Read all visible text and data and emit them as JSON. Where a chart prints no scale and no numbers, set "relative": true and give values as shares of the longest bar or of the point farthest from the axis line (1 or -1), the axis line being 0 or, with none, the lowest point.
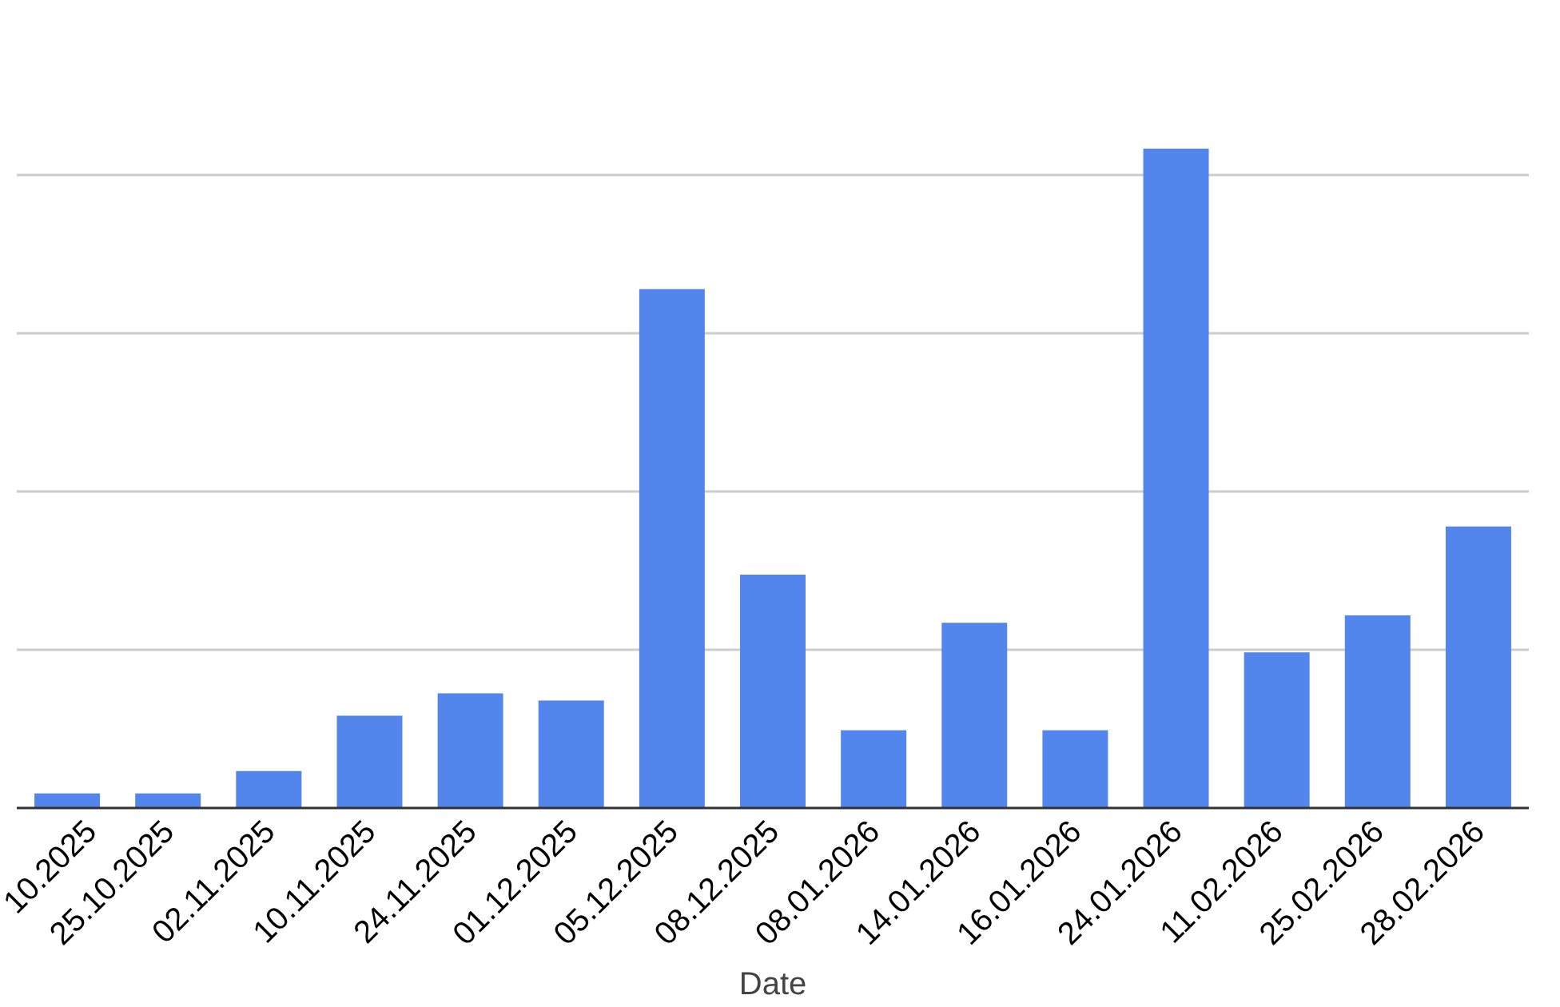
{
  "chart_data": {
    "type": "bar",
    "xlabel": "Date",
    "relative": true,
    "grid": "y",
    "categories": [
      "10.2025",
      "25.10.2025",
      "02.11.2025",
      "10.11.2025",
      "24.11.2025",
      "01.12.2025",
      "05.12.2025",
      "08.12.2025",
      "08.01.2026",
      "14.01.2026",
      "16.01.2026",
      "24.01.2026",
      "11.02.2026",
      "25.02.2026",
      "28.02.2026"
    ],
    "values": [
      0.022,
      0.022,
      0.056,
      0.14,
      0.174,
      0.163,
      0.787,
      0.354,
      0.118,
      0.281,
      0.118,
      1,
      0.236,
      0.292,
      0.427
    ],
    "color": "#5286ec"
  }
}
